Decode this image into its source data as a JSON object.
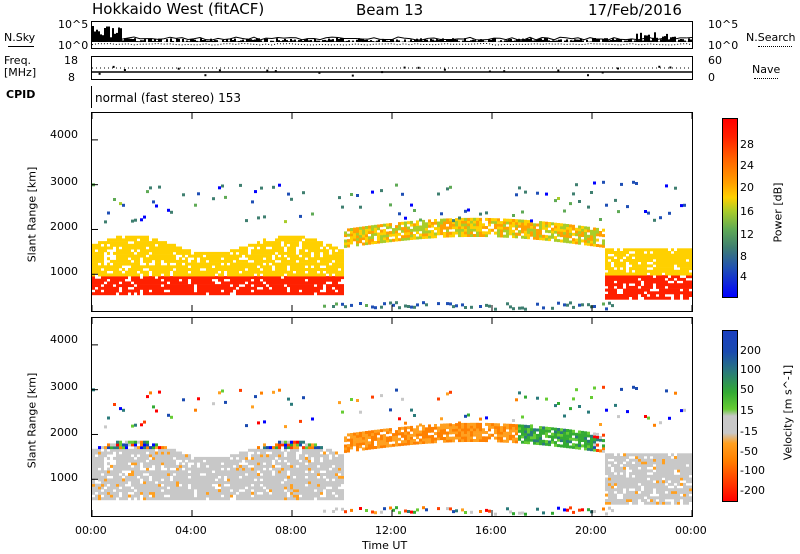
{
  "header": {
    "station": "Hokkaido West (fitACF)",
    "beam": "Beam 13",
    "date": "17/Feb/2016"
  },
  "noise_panel": {
    "left_label": "N.Sky",
    "right_label": "N.Search",
    "left_ticks": [
      "10^5",
      "10^0"
    ],
    "right_ticks": [
      "10^5",
      "10^0"
    ]
  },
  "freq_panel": {
    "left_label_1": "Freq.",
    "left_label_2": "[MHz]",
    "right_label": "Nave",
    "left_ticks": [
      "18",
      "8"
    ],
    "right_ticks": [
      "60",
      "0"
    ]
  },
  "cpid_panel": {
    "label": "CPID",
    "text": "normal (fast stereo) 153"
  },
  "chart_data": [
    {
      "type": "heatmap",
      "title": "Power",
      "ylabel": "Slant Range [km]",
      "ylim": [
        180,
        4600
      ],
      "yticks": [
        "1000",
        "2000",
        "3000",
        "4000"
      ],
      "xlim_hours": [
        0,
        24
      ],
      "xticks": [
        "00:00",
        "04:00",
        "08:00",
        "12:00",
        "16:00",
        "20:00",
        "00:00"
      ],
      "colorbar_label": "Power [dB]",
      "colorbar_ticks": [
        "28",
        "24",
        "20",
        "16",
        "12",
        "8",
        "4"
      ],
      "colors": [
        "#0000ff",
        "#1f4fb5",
        "#3f7f70",
        "#5faa55",
        "#a8cc2a",
        "#ffd000",
        "#ffa000",
        "#ff6000",
        "#ff2000",
        "#ff0000"
      ]
    },
    {
      "type": "heatmap",
      "title": "Velocity",
      "ylabel": "Slant Range [km]",
      "ylim": [
        180,
        4600
      ],
      "yticks": [
        "1000",
        "2000",
        "3000",
        "4000"
      ],
      "xlim_hours": [
        0,
        24
      ],
      "xticks": [
        "00:00",
        "04:00",
        "08:00",
        "12:00",
        "16:00",
        "20:00",
        "00:00"
      ],
      "xlabel": "Time UT",
      "colorbar_label": "Velocity [m s^-1]",
      "colorbar_ticks": [
        "200",
        "100",
        "50",
        "15",
        "-15",
        "-50",
        "-100",
        "-200"
      ],
      "colors": [
        "#ff0000",
        "#ff4000",
        "#ff8000",
        "#ffa020",
        "#c8c8c8",
        "#c8c8c8",
        "#66cc33",
        "#33aa33",
        "#2a7a7a",
        "#1a4ab0",
        "#0000ff"
      ]
    }
  ]
}
